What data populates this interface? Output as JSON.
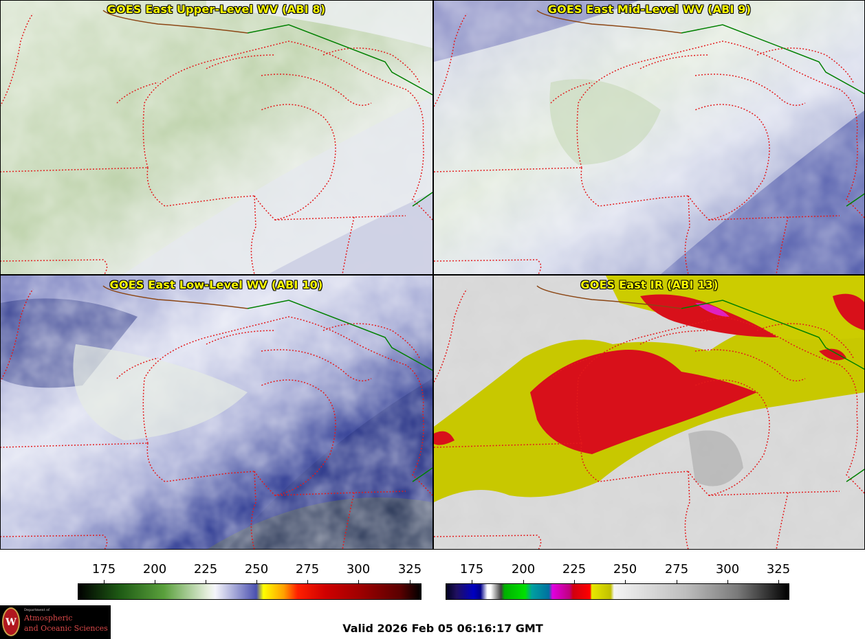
{
  "panels": [
    {
      "id": "p1",
      "title": "GOES East Upper-Level WV (ABI 8)",
      "palette": "upper"
    },
    {
      "id": "p2",
      "title": "GOES East Mid-Level WV (ABI 9)",
      "palette": "mid"
    },
    {
      "id": "p3",
      "title": "GOES East Low-Level WV (ABI 10)",
      "palette": "low"
    },
    {
      "id": "p4",
      "title": "GOES East IR (ABI 13)",
      "palette": "ir"
    }
  ],
  "colorbars": [
    {
      "name": "wv-colorbar",
      "ticks": [
        "175",
        "200",
        "225",
        "250",
        "275",
        "300",
        "325"
      ]
    },
    {
      "name": "ir-colorbar",
      "ticks": [
        "175",
        "200",
        "225",
        "250",
        "275",
        "300",
        "325"
      ]
    }
  ],
  "colors": {
    "title": "#ffff00",
    "border_state": "#e31a1c",
    "border_country": "#008000",
    "coast": "#8b4513"
  },
  "logo": {
    "line1": "Department of",
    "line2": "Atmospheric",
    "line3": "and Oceanic Sciences",
    "seal": "W"
  },
  "valid_text": "Valid 2026 Feb 05 06:16:17 GMT"
}
